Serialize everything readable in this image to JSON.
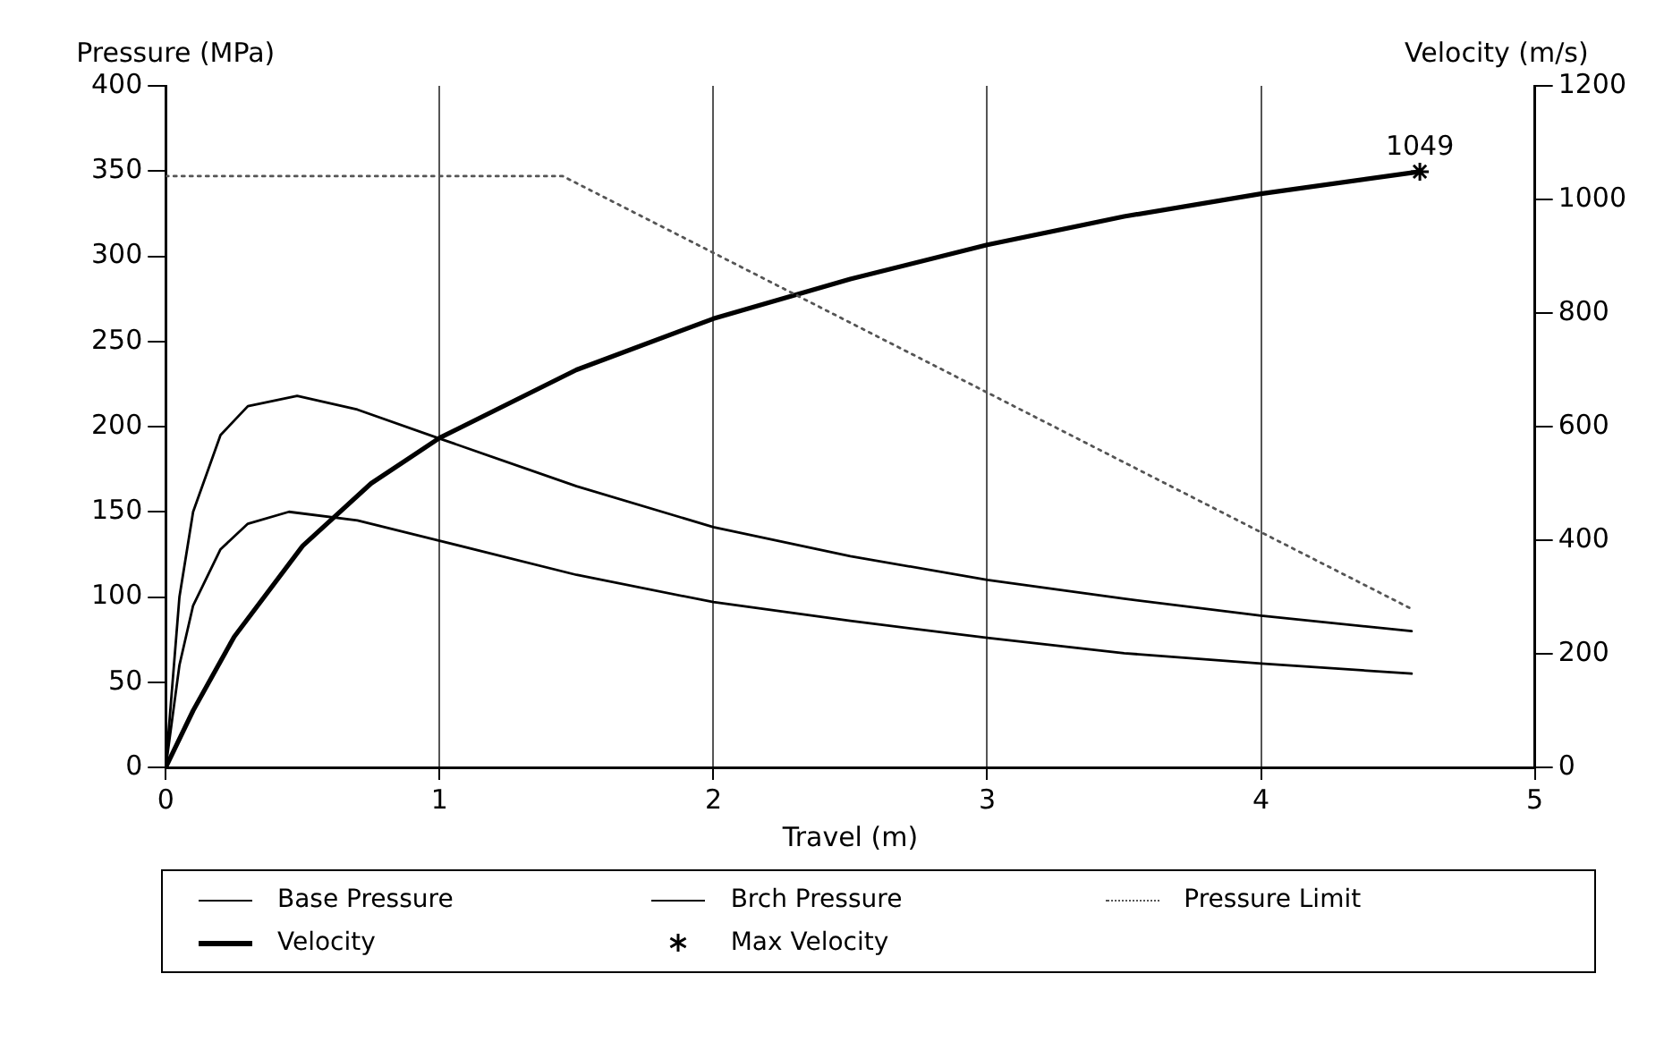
{
  "chart_data": {
    "type": "line",
    "xlabel": "Travel (m)",
    "ylabel": "Pressure (MPa)",
    "y2label": "Velocity (m/s)",
    "xlim": [
      0,
      5
    ],
    "xticks": [
      0,
      1,
      2,
      3,
      4,
      5
    ],
    "ylim": [
      0,
      400
    ],
    "yticks": [
      0,
      50,
      100,
      150,
      200,
      250,
      300,
      350,
      400
    ],
    "y2lim": [
      0,
      1200
    ],
    "y2ticks": [
      0,
      200,
      400,
      600,
      800,
      1000,
      1200
    ],
    "grid": "x",
    "legend": "bottom",
    "series": [
      {
        "name": "Base Pressure",
        "color": "#000000",
        "line_style": "solid",
        "x": [
          0,
          0.05,
          0.1,
          0.2,
          0.3,
          0.45,
          0.7,
          1,
          1.5,
          2,
          2.5,
          3,
          3.5,
          4,
          4.55
        ],
        "values": [
          0,
          60,
          95,
          128,
          143,
          150,
          145,
          133,
          113,
          97,
          86,
          76,
          67,
          61,
          55
        ]
      },
      {
        "name": "Brch Pressure",
        "color": "#000000",
        "line_style": "solid",
        "x": [
          0,
          0.05,
          0.1,
          0.2,
          0.3,
          0.48,
          0.7,
          1,
          1.5,
          2,
          2.5,
          3,
          3.5,
          4,
          4.55
        ],
        "values": [
          0,
          100,
          150,
          195,
          212,
          218,
          210,
          193,
          165,
          141,
          124,
          110,
          99,
          89,
          80
        ]
      },
      {
        "name": "Pressure Limit",
        "color": "#555555",
        "line_style": "dotted",
        "x": [
          0,
          1.45,
          2,
          3,
          4,
          4.55
        ],
        "values": [
          347,
          347,
          302,
          220,
          138,
          93
        ]
      },
      {
        "name": "Velocity",
        "color": "#000000",
        "line_style": "solid",
        "axis": "y2",
        "x": [
          0,
          0.1,
          0.25,
          0.5,
          0.75,
          1,
          1.5,
          2,
          2.5,
          3,
          3.5,
          4,
          4.58
        ],
        "values": [
          0,
          100,
          230,
          390,
          500,
          580,
          700,
          790,
          860,
          920,
          970,
          1010,
          1049
        ]
      },
      {
        "name": "Max Velocity",
        "type": "scatter",
        "marker": "cross",
        "color": "#000000",
        "axis": "y2",
        "x": [
          4.58
        ],
        "values": [
          1049
        ],
        "value_labels": [
          "1049"
        ]
      }
    ]
  }
}
